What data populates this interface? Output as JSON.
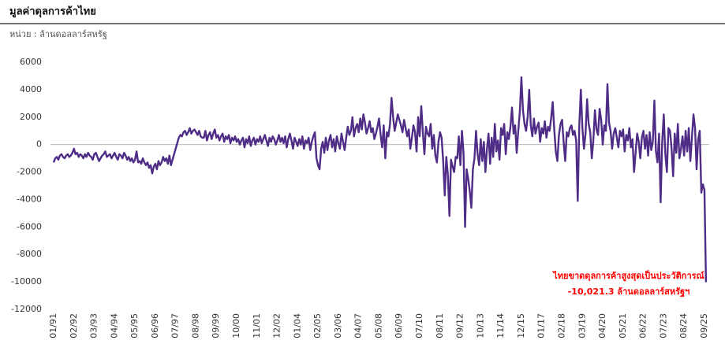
{
  "chart_data": {
    "type": "line",
    "title": "มูลค่าดุลการค้าไทย",
    "subtitle": "หน่วย : ล้านดอลลาร์สหรัฐ",
    "annotation": [
      "ไทยขาดดุลการค้าสูงสุดเป็นประวัติการณ์",
      "-10,021.3 ล้านดอลลาร์สหรัฐฯ"
    ],
    "annotation_color": "#ff0000",
    "color": "#4f2d87",
    "ylim": [
      -12000,
      6000
    ],
    "yticks": [
      -12000,
      -10000,
      -8000,
      -6000,
      -4000,
      -2000,
      0,
      2000,
      4000,
      6000
    ],
    "zero_line": true,
    "categories": [
      "01/91",
      null,
      null,
      null,
      null,
      null,
      null,
      null,
      null,
      null,
      null,
      null,
      null,
      "02/92",
      null,
      null,
      null,
      null,
      null,
      null,
      null,
      null,
      null,
      null,
      null,
      null,
      "03/93",
      null,
      null,
      null,
      null,
      null,
      null,
      null,
      null,
      null,
      null,
      null,
      null,
      "04/94",
      null,
      null,
      null,
      null,
      null,
      null,
      null,
      null,
      null,
      null,
      null,
      null,
      "05/95",
      null,
      null,
      null,
      null,
      null,
      null,
      null,
      null,
      null,
      null,
      null,
      null,
      "06/96",
      null,
      null,
      null,
      null,
      null,
      null,
      null,
      null,
      null,
      null,
      null,
      null,
      "07/97",
      null,
      null,
      null,
      null,
      null,
      null,
      null,
      null,
      null,
      null,
      null,
      null,
      "08/98",
      null,
      null,
      null,
      null,
      null,
      null,
      null,
      null,
      null,
      null,
      null,
      null,
      "09/99",
      null,
      null,
      null,
      null,
      null,
      null,
      null,
      null,
      null,
      null,
      null,
      null,
      "10/00",
      null,
      null,
      null,
      null,
      null,
      null,
      null,
      null,
      null,
      null,
      null,
      null,
      "11/01",
      null,
      null,
      null,
      null,
      null,
      null,
      null,
      null,
      null,
      null,
      null,
      null,
      "12/02",
      null,
      null,
      null,
      null,
      null,
      null,
      null,
      null,
      null,
      null,
      null,
      null,
      "01/04",
      null,
      null,
      null,
      null,
      null,
      null,
      null,
      null,
      null,
      null,
      null,
      null,
      "02/05",
      null,
      null,
      null,
      null,
      null,
      null,
      null,
      null,
      null,
      null,
      null,
      null,
      "03/06",
      null,
      null,
      null,
      null,
      null,
      null,
      null,
      null,
      null,
      null,
      null,
      null,
      "04/07",
      null,
      null,
      null,
      null,
      null,
      null,
      null,
      null,
      null,
      null,
      null,
      null,
      "05/08",
      null,
      null,
      null,
      null,
      null,
      null,
      null,
      null,
      null,
      null,
      null,
      null,
      "06/09",
      null,
      null,
      null,
      null,
      null,
      null,
      null,
      null,
      null,
      null,
      null,
      null,
      "07/10",
      null,
      null,
      null,
      null,
      null,
      null,
      null,
      null,
      null,
      null,
      null,
      null,
      "08/11",
      null,
      null,
      null,
      null,
      null,
      null,
      null,
      null,
      null,
      null,
      null,
      null,
      "09/12",
      null,
      null,
      null,
      null,
      null,
      null,
      null,
      null,
      null,
      null,
      null,
      null,
      "10/13",
      null,
      null,
      null,
      null,
      null,
      null,
      null,
      null,
      null,
      null,
      null,
      null,
      "11/14",
      null,
      null,
      null,
      null,
      null,
      null,
      null,
      null,
      null,
      null,
      null,
      null,
      "12/15",
      null,
      null,
      null,
      null,
      null,
      null,
      null,
      null,
      null,
      null,
      null,
      null,
      "01/17",
      null,
      null,
      null,
      null,
      null,
      null,
      null,
      null,
      null,
      null,
      null,
      null,
      "02/18",
      null,
      null,
      null,
      null,
      null,
      null,
      null,
      null,
      null,
      null,
      null,
      null,
      "03/19",
      null,
      null,
      null,
      null,
      null,
      null,
      null,
      null,
      null,
      null,
      null,
      null,
      "04/20",
      null,
      null,
      null,
      null,
      null,
      null,
      null,
      null,
      null,
      null,
      null,
      null,
      "05/21",
      null,
      null,
      null,
      null,
      null,
      null,
      null,
      null,
      null,
      null,
      null,
      null,
      "06/22",
      null,
      null,
      null,
      null,
      null,
      null,
      null,
      null,
      null,
      null,
      null,
      null,
      "07/23",
      null,
      null,
      null,
      null,
      null,
      null,
      null,
      null,
      null,
      null,
      null,
      null,
      "08/24",
      null,
      null,
      null,
      null,
      null,
      null,
      null,
      null,
      null,
      null,
      null,
      null,
      "09/25",
      null
    ],
    "values": [
      -1300,
      -1000,
      -900,
      -1100,
      -800,
      -700,
      -900,
      -1000,
      -800,
      -700,
      -900,
      -800,
      -600,
      -300,
      -700,
      -600,
      -900,
      -700,
      -800,
      -1000,
      -700,
      -900,
      -600,
      -800,
      -900,
      -1100,
      -700,
      -600,
      -900,
      -1200,
      -1000,
      -800,
      -700,
      -500,
      -900,
      -800,
      -700,
      -1000,
      -800,
      -600,
      -900,
      -1100,
      -700,
      -800,
      -1000,
      -600,
      -800,
      -1100,
      -900,
      -1200,
      -1000,
      -1300,
      -1100,
      -500,
      -1300,
      -1200,
      -1400,
      -1000,
      -1300,
      -1500,
      -1300,
      -1700,
      -1500,
      -2100,
      -1600,
      -1400,
      -1800,
      -1200,
      -1500,
      -1300,
      -900,
      -1200,
      -1000,
      -1400,
      -800,
      -1500,
      -1100,
      -700,
      -300,
      100,
      500,
      700,
      600,
      900,
      1000,
      700,
      900,
      1200,
      800,
      1000,
      1100,
      900,
      700,
      1000,
      600,
      500,
      500,
      1000,
      300,
      700,
      900,
      400,
      800,
      1100,
      500,
      700,
      300,
      600,
      800,
      200,
      600,
      400,
      700,
      100,
      500,
      300,
      600,
      200,
      400,
      0,
      300,
      500,
      -200,
      400,
      100,
      600,
      -100,
      300,
      500,
      0,
      400,
      200,
      600,
      100,
      400,
      700,
      300,
      -100,
      500,
      200,
      600,
      400,
      0,
      300,
      700,
      200,
      500,
      100,
      600,
      -200,
      400,
      800,
      300,
      -300,
      500,
      200,
      -100,
      400,
      0,
      600,
      -300,
      300,
      100,
      500,
      -400,
      200,
      600,
      900,
      -1000,
      -1500,
      -1800,
      -300,
      200,
      -600,
      500,
      -400,
      300,
      700,
      -200,
      400,
      -500,
      600,
      100,
      -300,
      800,
      200,
      -400,
      500,
      1300,
      700,
      1000,
      2000,
      600,
      1200,
      1500,
      900,
      1900,
      1100,
      2200,
      1600,
      800,
      1200,
      1700,
      900,
      1200,
      400,
      800,
      1300,
      1900,
      700,
      -200,
      1400,
      -1000,
      900,
      600,
      1500,
      3400,
      2000,
      1000,
      1600,
      2200,
      1800,
      1400,
      900,
      1800,
      1200,
      600,
      1100,
      -300,
      500,
      1400,
      900,
      -500,
      2000,
      600,
      2800,
      900,
      -700,
      1300,
      800,
      600,
      1500,
      -300,
      700,
      -800,
      -1300,
      200,
      900,
      500,
      -1200,
      -3700,
      -900,
      -2200,
      -5200,
      -1100,
      -1600,
      -2000,
      -900,
      -1000,
      600,
      -1500,
      1000,
      -600,
      -6000,
      -1800,
      -2500,
      -3400,
      -4600,
      -1800,
      -1000,
      1000,
      -700,
      -1500,
      400,
      -1200,
      200,
      -2000,
      -300,
      800,
      -1400,
      500,
      -900,
      1500,
      -500,
      300,
      -1100,
      1200,
      700,
      1500,
      -700,
      900,
      400,
      1300,
      2700,
      800,
      1400,
      -600,
      1000,
      2400,
      4900,
      2500,
      1500,
      1000,
      2000,
      4000,
      1400,
      600,
      1900,
      800,
      1300,
      1600,
      200,
      1200,
      800,
      1700,
      500,
      1300,
      1000,
      1900,
      3100,
      1100,
      -500,
      -1200,
      700,
      1500,
      1800,
      200,
      -1200,
      900,
      600,
      1200,
      1400,
      700,
      1000,
      300,
      -4100,
      1400,
      4000,
      1200,
      -300,
      800,
      3300,
      1500,
      900,
      -1000,
      300,
      2500,
      1100,
      700,
      2600,
      1800,
      0,
      1400,
      1000,
      4400,
      1600,
      1000,
      -300,
      800,
      1200,
      500,
      -200,
      1000,
      600,
      1100,
      -500,
      700,
      300,
      1200,
      -200,
      400,
      -2000,
      -600,
      800,
      200,
      -1000,
      500,
      1000,
      -300,
      700,
      -800,
      900,
      -400,
      200,
      3200,
      -500,
      -1300,
      800,
      -4200,
      200,
      2200,
      -700,
      -2000,
      1200,
      1000,
      -300,
      -2300,
      800,
      -600,
      1500,
      -1000,
      -300,
      600,
      -800,
      1000,
      -500,
      1200,
      -1200,
      500,
      2200,
      1200,
      -1800,
      400,
      1000,
      -3500,
      -2900,
      -3300,
      -10021.3
    ]
  }
}
